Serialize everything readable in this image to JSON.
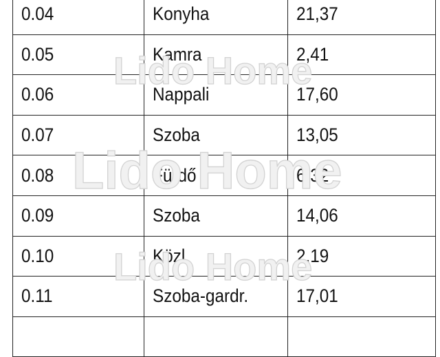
{
  "rows": [
    {
      "id": "0.04",
      "name": "Konyha",
      "area": "21,37"
    },
    {
      "id": "0.05",
      "name": "Kamra",
      "area": "2,41"
    },
    {
      "id": "0.06",
      "name": "Nappali",
      "area": "17,60"
    },
    {
      "id": "0.07",
      "name": "Szoba",
      "area": "13,05"
    },
    {
      "id": "0.08",
      "name": "Fürdő",
      "area": "6,32"
    },
    {
      "id": "0.09",
      "name": "Szoba",
      "area": "14,06"
    },
    {
      "id": "0.10",
      "name": "Közl.",
      "area": "2,19"
    },
    {
      "id": "0.11",
      "name": "Szoba-gardr.",
      "area": "17,01"
    },
    {
      "id": "",
      "name": "",
      "area": ""
    }
  ],
  "watermark": "Lido Home"
}
